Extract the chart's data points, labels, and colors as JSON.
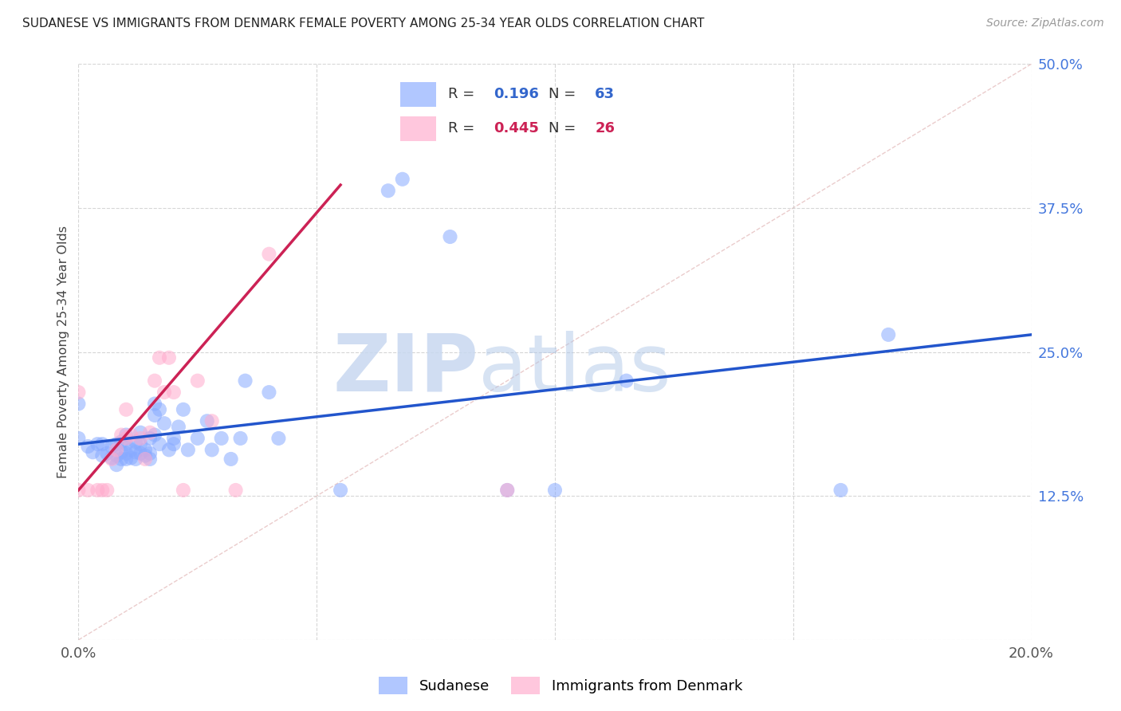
{
  "title": "SUDANESE VS IMMIGRANTS FROM DENMARK FEMALE POVERTY AMONG 25-34 YEAR OLDS CORRELATION CHART",
  "source": "Source: ZipAtlas.com",
  "ylabel_label": "Female Poverty Among 25-34 Year Olds",
  "xlim": [
    0.0,
    0.2
  ],
  "ylim": [
    0.0,
    0.5
  ],
  "xticks": [
    0.0,
    0.05,
    0.1,
    0.15,
    0.2
  ],
  "yticks": [
    0.0,
    0.125,
    0.25,
    0.375,
    0.5
  ],
  "blue_color": "#88aaff",
  "pink_color": "#ffaacc",
  "blue_line_color": "#2255cc",
  "pink_line_color": "#cc2255",
  "diagonal_color": "#ddbbbb",
  "watermark_zip": "ZIP",
  "watermark_atlas": "atlas",
  "blue_r": 0.196,
  "blue_n": 63,
  "pink_r": 0.445,
  "pink_n": 26,
  "blue_x": [
    0.0,
    0.0,
    0.002,
    0.003,
    0.004,
    0.005,
    0.005,
    0.006,
    0.007,
    0.007,
    0.008,
    0.008,
    0.008,
    0.009,
    0.009,
    0.009,
    0.01,
    0.01,
    0.01,
    0.01,
    0.011,
    0.011,
    0.012,
    0.012,
    0.012,
    0.013,
    0.013,
    0.013,
    0.014,
    0.014,
    0.015,
    0.015,
    0.015,
    0.016,
    0.016,
    0.016,
    0.017,
    0.017,
    0.018,
    0.019,
    0.02,
    0.02,
    0.021,
    0.022,
    0.023,
    0.025,
    0.027,
    0.028,
    0.03,
    0.032,
    0.034,
    0.035,
    0.04,
    0.042,
    0.055,
    0.065,
    0.068,
    0.078,
    0.09,
    0.1,
    0.115,
    0.16,
    0.17
  ],
  "blue_y": [
    0.175,
    0.205,
    0.168,
    0.163,
    0.17,
    0.16,
    0.17,
    0.162,
    0.158,
    0.168,
    0.152,
    0.16,
    0.17,
    0.157,
    0.163,
    0.172,
    0.157,
    0.162,
    0.17,
    0.178,
    0.158,
    0.165,
    0.157,
    0.163,
    0.172,
    0.162,
    0.17,
    0.18,
    0.16,
    0.165,
    0.157,
    0.162,
    0.175,
    0.178,
    0.195,
    0.205,
    0.17,
    0.2,
    0.188,
    0.165,
    0.17,
    0.175,
    0.185,
    0.2,
    0.165,
    0.175,
    0.19,
    0.165,
    0.175,
    0.157,
    0.175,
    0.225,
    0.215,
    0.175,
    0.13,
    0.39,
    0.4,
    0.35,
    0.13,
    0.13,
    0.225,
    0.13,
    0.265
  ],
  "pink_x": [
    0.0,
    0.0,
    0.002,
    0.004,
    0.005,
    0.006,
    0.007,
    0.008,
    0.009,
    0.01,
    0.01,
    0.011,
    0.013,
    0.014,
    0.015,
    0.016,
    0.017,
    0.018,
    0.019,
    0.02,
    0.022,
    0.025,
    0.028,
    0.033,
    0.04,
    0.09
  ],
  "pink_y": [
    0.13,
    0.215,
    0.13,
    0.13,
    0.13,
    0.13,
    0.157,
    0.165,
    0.178,
    0.175,
    0.2,
    0.178,
    0.175,
    0.157,
    0.18,
    0.225,
    0.245,
    0.215,
    0.245,
    0.215,
    0.13,
    0.225,
    0.19,
    0.13,
    0.335,
    0.13
  ],
  "blue_line_x": [
    0.0,
    0.2
  ],
  "blue_line_y": [
    0.17,
    0.265
  ],
  "pink_line_x": [
    0.0,
    0.055
  ],
  "pink_line_y": [
    0.13,
    0.395
  ]
}
